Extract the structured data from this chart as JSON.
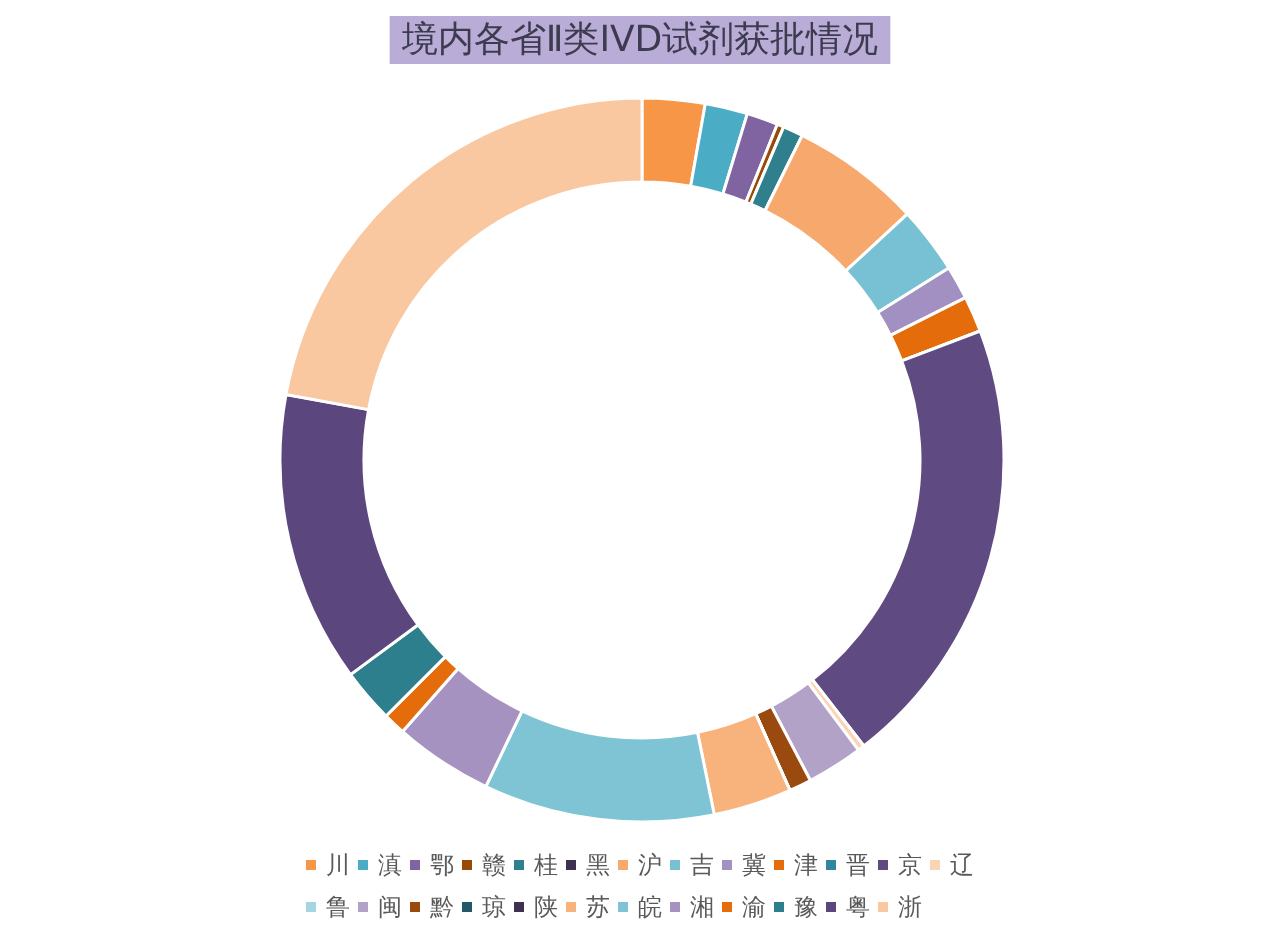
{
  "chart_data": {
    "type": "donut",
    "title": "境内各省Ⅱ类IVD试剂获批情况",
    "categories": [
      "川",
      "滇",
      "鄂",
      "赣",
      "桂",
      "黑",
      "沪",
      "吉",
      "冀",
      "津",
      "晋",
      "京",
      "辽",
      "鲁",
      "闽",
      "黔",
      "琼",
      "陕",
      "苏",
      "皖",
      "湘",
      "渝",
      "豫",
      "粤",
      "浙"
    ],
    "values": [
      2.8,
      1.9,
      1.4,
      0.3,
      0.9,
      0,
      5.8,
      3.0,
      1.5,
      1.6,
      0,
      20.3,
      0.3,
      0,
      2.5,
      1.0,
      0,
      0,
      3.5,
      10.3,
      4.4,
      1.0,
      2.4,
      13.0,
      22.1
    ],
    "colors": [
      "#f79646",
      "#4bacc6",
      "#8064a2",
      "#984807",
      "#2f7f8c",
      "#3f3151",
      "#f7a86c",
      "#78c0d4",
      "#a190c1",
      "#e46c0a",
      "#31859c",
      "#5f4a82",
      "#fbd4b4",
      "#a5d5e3",
      "#b3a2c7",
      "#9a4a0f",
      "#215968",
      "#3f3151",
      "#f8b27c",
      "#7ec4d5",
      "#a592c0",
      "#e46c0a",
      "#2e7f8e",
      "#5b467d",
      "#f9c8a0"
    ],
    "legend": "bottom"
  }
}
